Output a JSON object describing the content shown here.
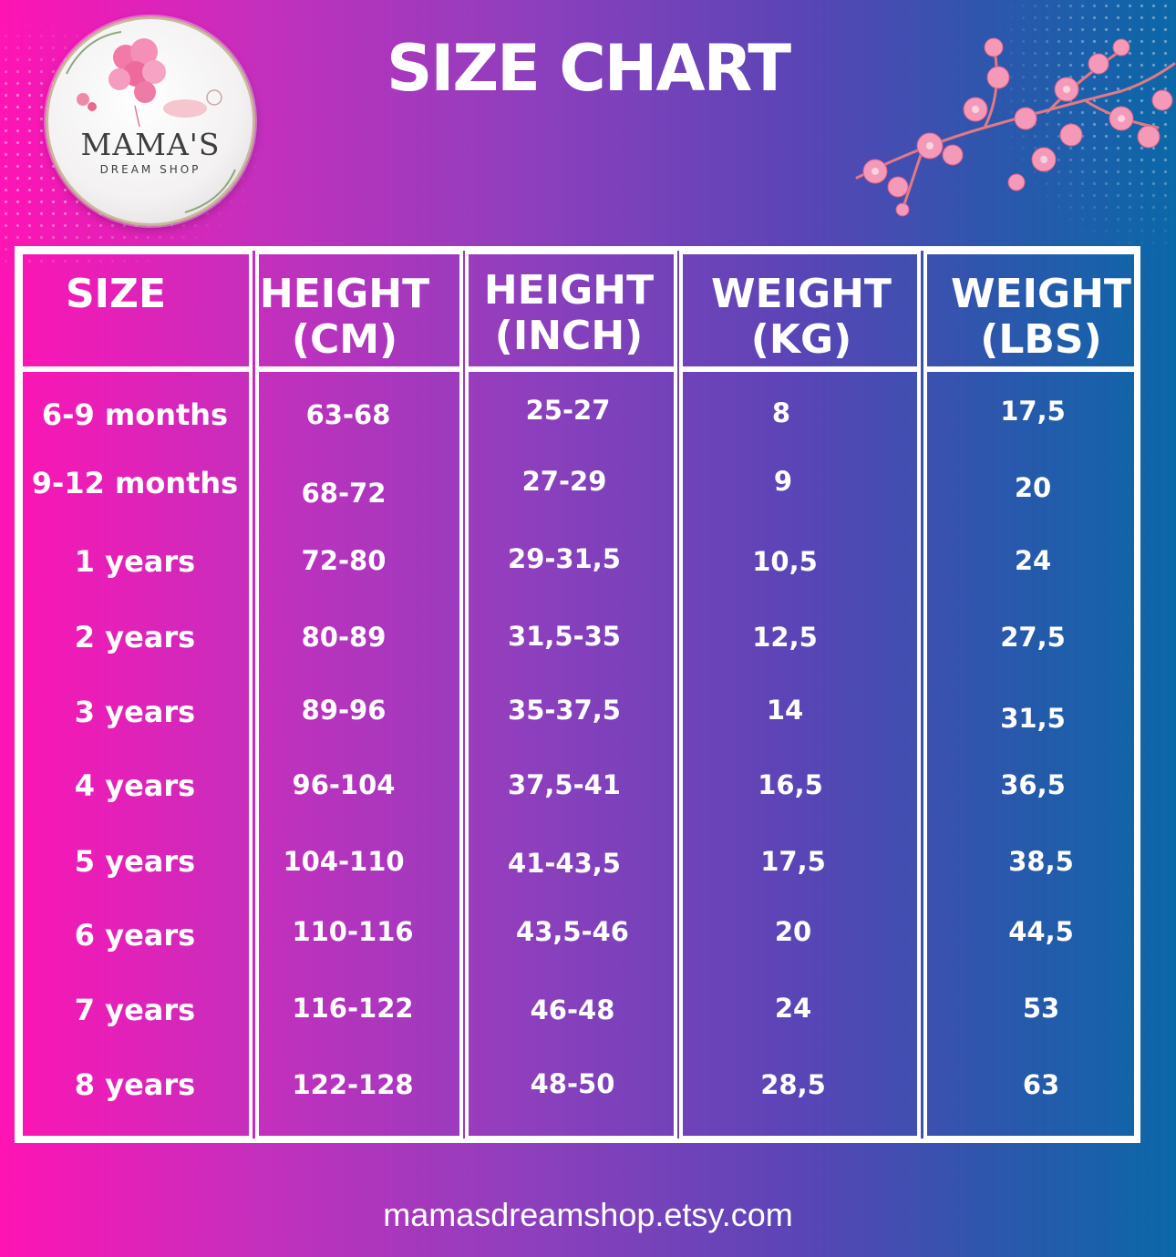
{
  "logo": {
    "name": "MAMA'S",
    "subtitle": "DREAM SHOP"
  },
  "title": "SIZE CHART",
  "headers": [
    {
      "line1": "SIZE",
      "line2": ""
    },
    {
      "line1": "HEIGHT",
      "line2": "(CM)"
    },
    {
      "line1": "HEIGHT",
      "line2": "(INCH)"
    },
    {
      "line1": "WEIGHT",
      "line2": "(KG)"
    },
    {
      "line1": "WEIGHT",
      "line2": "(LBS)"
    }
  ],
  "rows": [
    {
      "size": "6-9 months",
      "height_cm": "63-68",
      "height_inch": "25-27",
      "weight_kg": "8",
      "weight_lbs": "17,5"
    },
    {
      "size": "9-12 months",
      "height_cm": "68-72",
      "height_inch": "27-29",
      "weight_kg": "9",
      "weight_lbs": "20"
    },
    {
      "size": "1 years",
      "height_cm": "72-80",
      "height_inch": "29-31,5",
      "weight_kg": "10,5",
      "weight_lbs": "24"
    },
    {
      "size": "2 years",
      "height_cm": "80-89",
      "height_inch": "31,5-35",
      "weight_kg": "12,5",
      "weight_lbs": "27,5"
    },
    {
      "size": "3 years",
      "height_cm": "89-96",
      "height_inch": "35-37,5",
      "weight_kg": "14",
      "weight_lbs": "31,5"
    },
    {
      "size": "4 years",
      "height_cm": "96-104",
      "height_inch": "37,5-41",
      "weight_kg": "16,5",
      "weight_lbs": "36,5"
    },
    {
      "size": "5 years",
      "height_cm": "104-110",
      "height_inch": "41-43,5",
      "weight_kg": "17,5",
      "weight_lbs": "38,5"
    },
    {
      "size": "6 years",
      "height_cm": "110-116",
      "height_inch": "43,5-46",
      "weight_kg": "20",
      "weight_lbs": "44,5"
    },
    {
      "size": "7 years",
      "height_cm": "116-122",
      "height_inch": "46-48",
      "weight_kg": "24",
      "weight_lbs": "53"
    },
    {
      "size": "8 years",
      "height_cm": "122-128",
      "height_inch": "48-50",
      "weight_kg": "28,5",
      "weight_lbs": "63"
    }
  ],
  "footer": "mamasdreamshop.etsy.com",
  "colors": {
    "pink": "#ff14b4",
    "purple": "#8e3fbd",
    "blue": "#0b68a8",
    "blossom": "#f49ab8"
  }
}
